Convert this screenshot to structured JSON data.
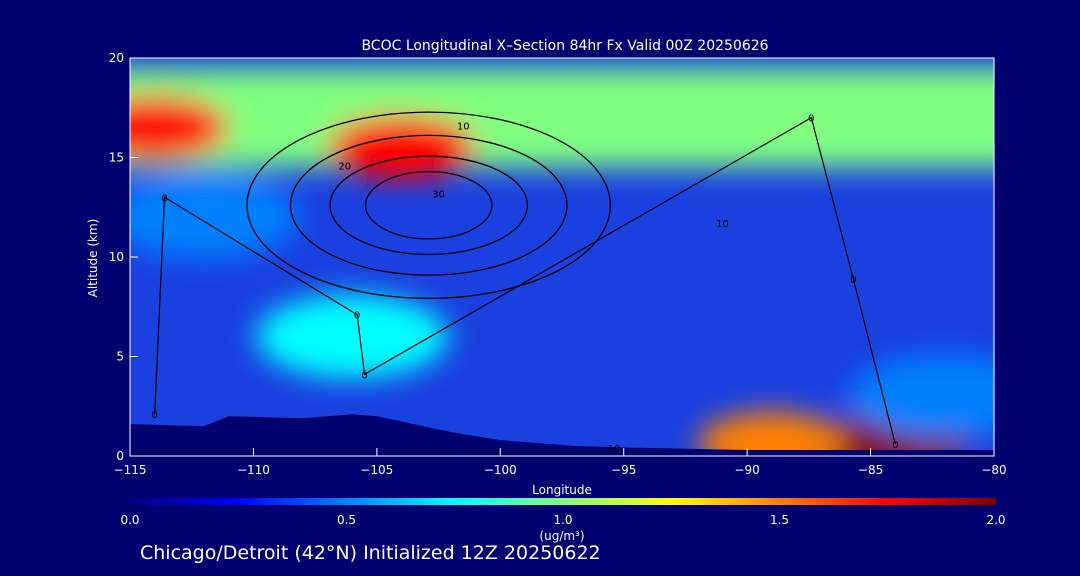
{
  "chart_data": {
    "type": "heatmap",
    "title": "BCOC Longitudinal X–Section 84hr  Fx Valid 00Z 20250626",
    "xlabel": "Longitude",
    "ylabel": "Altitude (km)",
    "xlim": [
      -115,
      -80
    ],
    "ylim": [
      0,
      20
    ],
    "xticks": [
      -115,
      -110,
      -105,
      -100,
      -95,
      -90,
      -85,
      -80
    ],
    "xtick_labels": [
      "−115",
      "−110",
      "−105",
      "−100",
      "−95",
      "−90",
      "−85",
      "−80"
    ],
    "yticks": [
      0,
      5,
      10,
      15,
      20
    ],
    "ytick_labels": [
      "0",
      "5",
      "10",
      "15",
      "20"
    ],
    "colorbar": {
      "min": 0.0,
      "max": 2.0,
      "ticks": [
        0.0,
        0.5,
        1.0,
        1.5,
        2.0
      ],
      "tick_labels": [
        "0.0",
        "0.5",
        "1.0",
        "1.5",
        "2.0"
      ],
      "unit_label": "(ug/m³)",
      "colors": [
        "#000080",
        "#0000ff",
        "#0080ff",
        "#00ffff",
        "#80ff80",
        "#ffff00",
        "#ff8000",
        "#ff0000",
        "#800000"
      ]
    },
    "background_field": 0.15,
    "field_features": [
      {
        "name": "upper band",
        "lon": [
          -115,
          -80
        ],
        "alt": [
          14.5,
          19.5
        ],
        "value": 1.0
      },
      {
        "name": "upper band west max",
        "lon": -114,
        "alt": 16.5,
        "value": 1.75
      },
      {
        "name": "upper band core",
        "lon": -104,
        "alt": 15.5,
        "value": 1.8
      },
      {
        "name": "mid band west",
        "lon": -112,
        "alt": 12,
        "value": 0.6
      },
      {
        "name": "plume west",
        "lon": -106,
        "alt": 6,
        "value": 0.75
      },
      {
        "name": "surface max east",
        "lon": -84,
        "alt": 0.6,
        "value": 1.9
      },
      {
        "name": "surface max central",
        "lon": -89,
        "alt": 0.6,
        "value": 1.6
      },
      {
        "name": "east low max",
        "lon": -82,
        "alt": 3,
        "value": 0.55
      }
    ],
    "contour_labels": [
      {
        "text": "10",
        "lon": -101.5,
        "alt": 16.6
      },
      {
        "text": "20",
        "lon": -106.3,
        "alt": 14.6
      },
      {
        "text": "30",
        "lon": -102.5,
        "alt": 13.2
      },
      {
        "text": "0",
        "lon": -113.6,
        "alt": 13.0
      },
      {
        "text": "0",
        "lon": -87.4,
        "alt": 17.0
      },
      {
        "text": "10",
        "lon": -91.0,
        "alt": 11.7
      },
      {
        "text": "0",
        "lon": -85.7,
        "alt": 8.9
      },
      {
        "text": "0",
        "lon": -105.8,
        "alt": 7.1
      },
      {
        "text": "0",
        "lon": -105.5,
        "alt": 4.1
      },
      {
        "text": "0",
        "lon": -114.0,
        "alt": 2.1
      },
      {
        "text": "10",
        "lon": -95.4,
        "alt": 0.4
      },
      {
        "text": "0",
        "lon": -84.0,
        "alt": 0.6
      }
    ],
    "terrain": [
      {
        "lon": -115,
        "alt": 1.6
      },
      {
        "lon": -112,
        "alt": 1.5
      },
      {
        "lon": -111,
        "alt": 2.0
      },
      {
        "lon": -108,
        "alt": 1.9
      },
      {
        "lon": -106,
        "alt": 2.1
      },
      {
        "lon": -105,
        "alt": 2.0
      },
      {
        "lon": -102,
        "alt": 1.2
      },
      {
        "lon": -100,
        "alt": 0.8
      },
      {
        "lon": -97,
        "alt": 0.5
      },
      {
        "lon": -94,
        "alt": 0.4
      },
      {
        "lon": -90,
        "alt": 0.3
      },
      {
        "lon": -85,
        "alt": 0.3
      },
      {
        "lon": -80,
        "alt": 0.3
      }
    ]
  },
  "footer": "Chicago/Detroit (42°N) Initialized 12Z 20250622"
}
